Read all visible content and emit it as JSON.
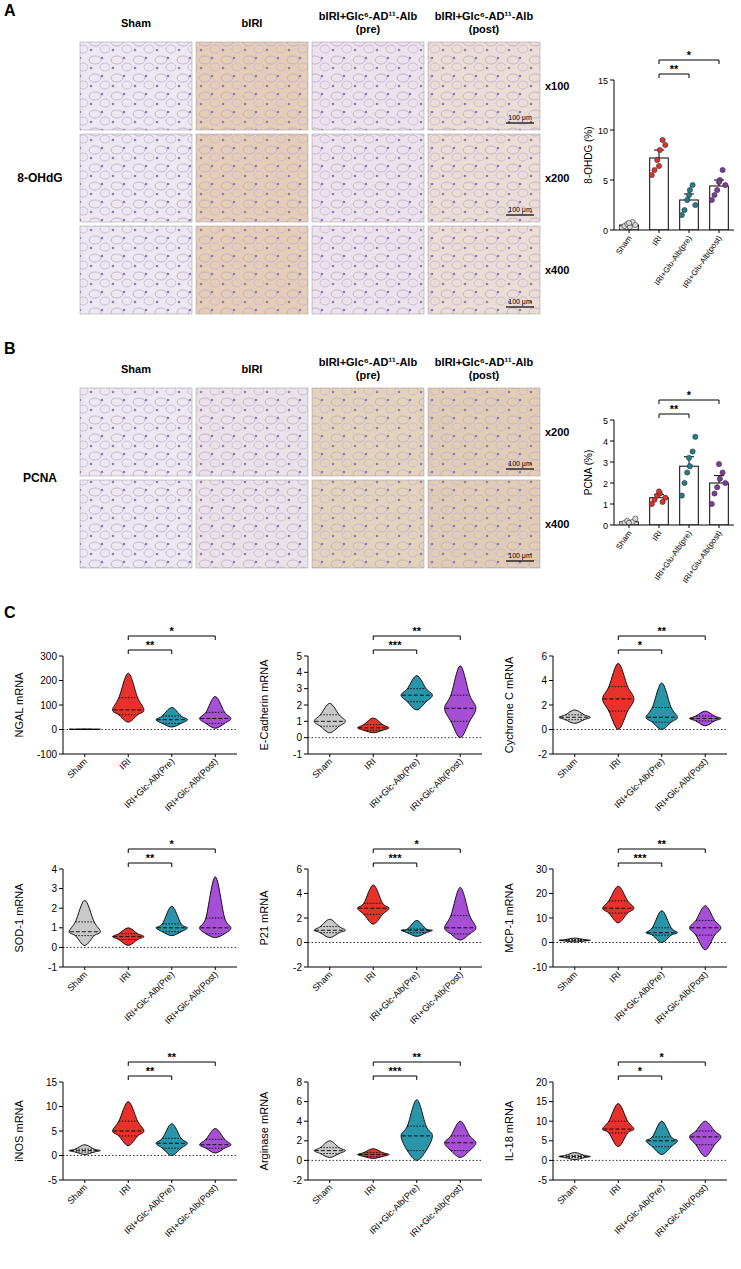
{
  "panel_labels": [
    "A",
    "B",
    "C"
  ],
  "image_panels": [
    {
      "stain": "8-OHdG",
      "columns": [
        "Sham",
        "bIRI",
        "bIRI+Glc⁶-AD¹¹-Alb (pre)",
        "bIRI+Glc⁶-AD¹¹-Alb (post)"
      ],
      "magnifications": [
        "x100",
        "x200",
        "x400"
      ],
      "scale_bar": "100 μm"
    },
    {
      "stain": "PCNA",
      "columns": [
        "Sham",
        "bIRI",
        "bIRI+Glc⁶-AD¹¹-Alb (pre)",
        "bIRI+Glc⁶-AD¹¹-Alb (post)"
      ],
      "magnifications": [
        "x200",
        "x400"
      ],
      "scale_bar": "100 μm"
    }
  ],
  "chart_data": [
    {
      "type": "bar",
      "ylabel": "8-OHDG (%)",
      "categories": [
        "Sham",
        "IRI",
        "IRI+Glu-Alb(pre)",
        "IRI+Glu-Alb(post)"
      ],
      "values": [
        0.5,
        7.2,
        3.0,
        4.4
      ],
      "errors": [
        0.15,
        0.8,
        0.6,
        0.6
      ],
      "points": [
        [
          0.2,
          0.4,
          0.6,
          0.3,
          0.8,
          0.5,
          0.7
        ],
        [
          5.5,
          6,
          7,
          8,
          9,
          8.5,
          6.4
        ],
        [
          1.5,
          2,
          3,
          4,
          4.5,
          2.5,
          3.5
        ],
        [
          3,
          3.5,
          4,
          5,
          6,
          4.5,
          4.8
        ]
      ],
      "colors": [
        "#d9d9d9",
        "#e0302a",
        "#1f7f8c",
        "#7d3b9a"
      ],
      "ylim": [
        0,
        15
      ],
      "yticks": [
        0,
        5,
        10,
        15
      ],
      "significance": [
        {
          "groups": [
            1,
            2
          ],
          "label": "**"
        },
        {
          "groups": [
            1,
            3
          ],
          "label": "*"
        }
      ]
    },
    {
      "type": "bar",
      "ylabel": "PCNA (%)",
      "categories": [
        "Sham",
        "IRI",
        "IRI+Glu-Alb(pre)",
        "IRI+Glu-Alb(post)"
      ],
      "values": [
        0.15,
        1.3,
        2.8,
        2.0
      ],
      "errors": [
        0.05,
        0.15,
        0.45,
        0.35
      ],
      "points": [
        [
          0.05,
          0.1,
          0.2,
          0.1,
          0.15,
          0.3,
          0.1
        ],
        [
          1.0,
          1.2,
          1.4,
          1.5,
          1.1,
          1.3,
          1.6
        ],
        [
          1.4,
          2.0,
          2.5,
          2.8,
          3.5,
          4.2,
          3.2
        ],
        [
          1.0,
          1.5,
          1.8,
          2.2,
          2.5,
          2.0,
          2.9
        ]
      ],
      "colors": [
        "#d9d9d9",
        "#e0302a",
        "#1f7f8c",
        "#7d3b9a"
      ],
      "ylim": [
        0,
        5
      ],
      "yticks": [
        0,
        1,
        2,
        3,
        4,
        5
      ],
      "significance": [
        {
          "groups": [
            1,
            2
          ],
          "label": "**"
        },
        {
          "groups": [
            1,
            3
          ],
          "label": "*"
        }
      ]
    },
    {
      "type": "violin",
      "ylabel": "NGAL mRNA",
      "categories": [
        "Sham",
        "IRI",
        "IRI+Glc-Alb(Pre)",
        "IRI+Glc-Alb(Post)"
      ],
      "stats": [
        [
          0,
          0,
          1,
          1,
          2
        ],
        [
          30,
          60,
          80,
          130,
          230
        ],
        [
          10,
          25,
          40,
          55,
          90
        ],
        [
          5,
          25,
          45,
          70,
          135
        ]
      ],
      "colors": [
        "#c9c9c9",
        "#e8312a",
        "#2a95a8",
        "#a64fd6"
      ],
      "ylim": [
        -100,
        300
      ],
      "yticks": [
        -100,
        0,
        100,
        200,
        300
      ],
      "significance": [
        {
          "groups": [
            1,
            2
          ],
          "label": "**"
        },
        {
          "groups": [
            1,
            3
          ],
          "label": "*"
        }
      ]
    },
    {
      "type": "violin",
      "ylabel": "E-Cadherin mRNA",
      "categories": [
        "Sham",
        "IRI",
        "IRI+Glc-Alb(Pre)",
        "IRI+Glc-Alb(Post)"
      ],
      "stats": [
        [
          0.3,
          0.7,
          1,
          1.4,
          2.1
        ],
        [
          0.3,
          0.45,
          0.6,
          0.8,
          1.2
        ],
        [
          1.7,
          2.2,
          2.6,
          3,
          3.8
        ],
        [
          0,
          1,
          1.8,
          2.6,
          4.4
        ]
      ],
      "colors": [
        "#c9c9c9",
        "#e8312a",
        "#2a95a8",
        "#a64fd6"
      ],
      "ylim": [
        -1,
        5
      ],
      "yticks": [
        -1,
        0,
        1,
        2,
        3,
        4,
        5
      ],
      "significance": [
        {
          "groups": [
            1,
            2
          ],
          "label": "***"
        },
        {
          "groups": [
            1,
            3
          ],
          "label": "**"
        }
      ]
    },
    {
      "type": "violin",
      "ylabel": "Cychrome C mRNA",
      "categories": [
        "Sham",
        "IRI",
        "IRI+Glc-Alb(Pre)",
        "IRI+Glc-Alb(Post)"
      ],
      "stats": [
        [
          0.5,
          0.8,
          1,
          1.2,
          1.6
        ],
        [
          0,
          1.5,
          2.5,
          3.5,
          5.4
        ],
        [
          0,
          0.6,
          1,
          1.8,
          3.8
        ],
        [
          0.3,
          0.7,
          0.9,
          1.1,
          1.5
        ]
      ],
      "colors": [
        "#c9c9c9",
        "#e8312a",
        "#2a95a8",
        "#a64fd6"
      ],
      "ylim": [
        -2,
        6
      ],
      "yticks": [
        -2,
        0,
        2,
        4,
        6
      ],
      "significance": [
        {
          "groups": [
            1,
            2
          ],
          "label": "*"
        },
        {
          "groups": [
            1,
            3
          ],
          "label": "**"
        }
      ]
    },
    {
      "type": "violin",
      "ylabel": "SOD-1 mRNA",
      "categories": [
        "Sham",
        "IRI",
        "IRI+Glc-Alb(Pre)",
        "IRI+Glc-Alb(Post)"
      ],
      "stats": [
        [
          0.1,
          0.6,
          0.8,
          1.3,
          2.4
        ],
        [
          0.1,
          0.4,
          0.55,
          0.7,
          1.0
        ],
        [
          0.6,
          0.8,
          1,
          1.2,
          2.1
        ],
        [
          0.5,
          0.7,
          1,
          1.5,
          3.6
        ]
      ],
      "colors": [
        "#c9c9c9",
        "#e8312a",
        "#2a95a8",
        "#a64fd6"
      ],
      "ylim": [
        -1,
        4
      ],
      "yticks": [
        -1,
        0,
        1,
        2,
        3,
        4
      ],
      "significance": [
        {
          "groups": [
            1,
            2
          ],
          "label": "**"
        },
        {
          "groups": [
            1,
            3
          ],
          "label": "*"
        }
      ]
    },
    {
      "type": "violin",
      "ylabel": "P21 mRNA",
      "categories": [
        "Sham",
        "IRI",
        "IRI+Glc-Alb(Pre)",
        "IRI+Glc-Alb(Post)"
      ],
      "stats": [
        [
          0.4,
          0.8,
          1,
          1.3,
          1.9
        ],
        [
          1.5,
          2.3,
          2.8,
          3.2,
          4.7
        ],
        [
          0.5,
          0.8,
          1,
          1.1,
          1.8
        ],
        [
          0.2,
          0.7,
          1.2,
          2.2,
          4.5
        ]
      ],
      "colors": [
        "#c9c9c9",
        "#e8312a",
        "#2a95a8",
        "#a64fd6"
      ],
      "ylim": [
        -2,
        6
      ],
      "yticks": [
        -2,
        0,
        2,
        4,
        6
      ],
      "significance": [
        {
          "groups": [
            1,
            2
          ],
          "label": "***"
        },
        {
          "groups": [
            1,
            3
          ],
          "label": "*"
        }
      ]
    },
    {
      "type": "violin",
      "ylabel": "MCP-1 mRNA",
      "categories": [
        "Sham",
        "IRI",
        "IRI+Glc-Alb(Pre)",
        "IRI+Glc-Alb(Post)"
      ],
      "stats": [
        [
          0.2,
          0.6,
          0.9,
          1.2,
          1.8
        ],
        [
          8,
          12,
          14,
          17,
          23
        ],
        [
          0,
          3,
          4,
          6,
          13
        ],
        [
          -3,
          3,
          6,
          9,
          15
        ]
      ],
      "colors": [
        "#c9c9c9",
        "#e8312a",
        "#2a95a8",
        "#a64fd6"
      ],
      "ylim": [
        -10,
        30
      ],
      "yticks": [
        -10,
        0,
        10,
        20,
        30
      ],
      "significance": [
        {
          "groups": [
            1,
            2
          ],
          "label": "***"
        },
        {
          "groups": [
            1,
            3
          ],
          "label": "**"
        }
      ]
    },
    {
      "type": "violin",
      "ylabel": "iNOS mRNA",
      "categories": [
        "Sham",
        "IRI",
        "IRI+Glc-Alb(Pre)",
        "IRI+Glc-Alb(Post)"
      ],
      "stats": [
        [
          0.2,
          0.7,
          1,
          1.3,
          2.2
        ],
        [
          2,
          4,
          5,
          7,
          11
        ],
        [
          0,
          1.5,
          2.5,
          3.5,
          6.5
        ],
        [
          0.5,
          1.5,
          2.2,
          3.3,
          5.5
        ]
      ],
      "colors": [
        "#c9c9c9",
        "#e8312a",
        "#2a95a8",
        "#a64fd6"
      ],
      "ylim": [
        -5,
        15
      ],
      "yticks": [
        -5,
        0,
        5,
        10,
        15
      ],
      "significance": [
        {
          "groups": [
            1,
            2
          ],
          "label": "**"
        },
        {
          "groups": [
            1,
            3
          ],
          "label": "**"
        }
      ]
    },
    {
      "type": "violin",
      "ylabel": "Arginase mRNA",
      "categories": [
        "Sham",
        "IRI",
        "IRI+Glc-Alb(Pre)",
        "IRI+Glc-Alb(Post)"
      ],
      "stats": [
        [
          0.3,
          0.7,
          1,
          1.3,
          2
        ],
        [
          0.2,
          0.4,
          0.6,
          0.8,
          1.2
        ],
        [
          0,
          1,
          2.5,
          3.5,
          6.2
        ],
        [
          0.3,
          1,
          1.8,
          2.5,
          4
        ]
      ],
      "colors": [
        "#c9c9c9",
        "#e8312a",
        "#2a95a8",
        "#a64fd6"
      ],
      "ylim": [
        -2,
        8
      ],
      "yticks": [
        -2,
        0,
        2,
        4,
        6,
        8
      ],
      "significance": [
        {
          "groups": [
            1,
            2
          ],
          "label": "***"
        },
        {
          "groups": [
            1,
            3
          ],
          "label": "**"
        }
      ]
    },
    {
      "type": "violin",
      "ylabel": "IL-18 mRNA",
      "categories": [
        "Sham",
        "IRI",
        "IRI+Glc-Alb(Pre)",
        "IRI+Glc-Alb(Post)"
      ],
      "stats": [
        [
          0.2,
          0.7,
          1,
          1.3,
          2
        ],
        [
          3.5,
          7,
          8,
          10,
          14.5
        ],
        [
          1.5,
          3.5,
          5,
          6,
          10
        ],
        [
          1,
          4,
          6,
          7.5,
          10
        ]
      ],
      "colors": [
        "#c9c9c9",
        "#e8312a",
        "#2a95a8",
        "#a64fd6"
      ],
      "ylim": [
        -5,
        20
      ],
      "yticks": [
        -5,
        0,
        5,
        10,
        15,
        20
      ],
      "significance": [
        {
          "groups": [
            1,
            2
          ],
          "label": "*"
        },
        {
          "groups": [
            1,
            3
          ],
          "label": "*"
        }
      ]
    }
  ]
}
